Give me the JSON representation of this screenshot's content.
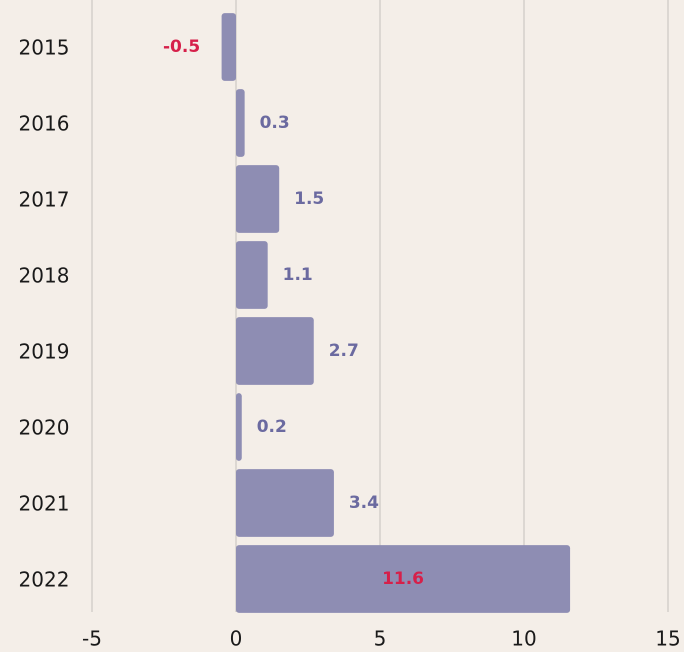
{
  "chart_data": {
    "type": "barh",
    "categories": [
      "2015",
      "2016",
      "2017",
      "2018",
      "2019",
      "2020",
      "2021",
      "2022"
    ],
    "values": [
      -0.5,
      0.3,
      1.5,
      1.1,
      2.7,
      0.2,
      3.4,
      11.6
    ],
    "color": "#8e8db3",
    "label_color": "#6b6aa0",
    "highlight_label_color": "#d6204a",
    "xlim": [
      -5,
      15
    ],
    "xticks": [
      -5,
      0,
      5,
      10,
      15
    ],
    "grid": true
  }
}
